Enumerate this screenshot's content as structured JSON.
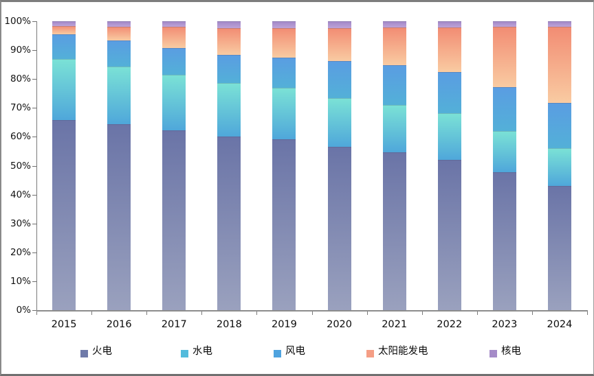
{
  "chart_data": {
    "type": "bar",
    "stacked": true,
    "percent_stacked": true,
    "title": "",
    "xlabel": "",
    "ylabel": "",
    "unit": "%",
    "grid": false,
    "legend_position": "bottom",
    "categories": [
      "2015",
      "2016",
      "2017",
      "2018",
      "2019",
      "2020",
      "2021",
      "2022",
      "2023",
      "2024"
    ],
    "series": [
      {
        "key": "thermal",
        "name": "火电",
        "values": [
          65.9,
          64.3,
          62.2,
          60.2,
          59.2,
          56.6,
          54.6,
          52.0,
          47.6,
          43.1
        ],
        "color_top": "#6A74A7",
        "color_bottom": "#9AA1BE",
        "legend_color": "#6F7AA9"
      },
      {
        "key": "hydro",
        "name": "水电",
        "values": [
          21.0,
          20.1,
          19.2,
          18.6,
          17.8,
          16.8,
          16.4,
          16.1,
          14.4,
          13.0
        ],
        "color_top": "#7BE2D6",
        "color_bottom": "#4FA7DA",
        "legend_color": "#53BBDC"
      },
      {
        "key": "wind",
        "name": "风电",
        "values": [
          8.6,
          8.9,
          9.2,
          9.7,
          10.4,
          12.8,
          13.8,
          14.3,
          15.1,
          15.6
        ],
        "color_top": "#5A9DE2",
        "color_bottom": "#53B0D8",
        "legend_color": "#4FA3DF"
      },
      {
        "key": "solar",
        "name": "太阳能发电",
        "values": [
          2.8,
          4.7,
          7.3,
          9.2,
          10.2,
          11.5,
          12.9,
          15.3,
          20.9,
          26.5
        ],
        "color_top": "#F28C73",
        "color_bottom": "#F9CBA2",
        "legend_color": "#F59E85"
      },
      {
        "key": "nuclear",
        "name": "核电",
        "values": [
          1.7,
          2.0,
          2.0,
          2.4,
          2.4,
          2.3,
          2.2,
          2.2,
          1.9,
          1.8
        ],
        "color_top": "#A287C7",
        "color_bottom": "#BCA3D8",
        "legend_color": "#A58BC8"
      }
    ],
    "y_axis": {
      "min": 0,
      "max": 100,
      "tick_step": 10,
      "ticks": [
        "0%",
        "10%",
        "20%",
        "30%",
        "40%",
        "50%",
        "60%",
        "70%",
        "80%",
        "90%",
        "100%"
      ]
    }
  }
}
